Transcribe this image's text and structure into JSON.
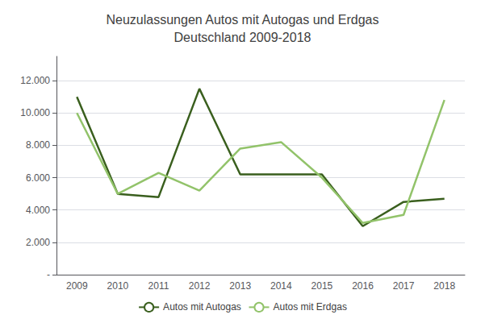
{
  "chart_data": {
    "type": "line",
    "title": "Neuzulassungen Autos mit Autogas und Erdgas\nDeutschland 2009-2018",
    "categories": [
      "2009",
      "2010",
      "2011",
      "2012",
      "2013",
      "2014",
      "2015",
      "2016",
      "2017",
      "2018"
    ],
    "series": [
      {
        "name": "Autos mit Autogas",
        "color": "#3a5f1e",
        "values": [
          11000,
          5000,
          4800,
          11500,
          6200,
          6200,
          6200,
          3000,
          4500,
          4700
        ]
      },
      {
        "name": "Autos mit Erdgas",
        "color": "#92c36a",
        "values": [
          10000,
          5000,
          6300,
          5200,
          7800,
          8200,
          6000,
          3200,
          3700,
          10800
        ]
      }
    ],
    "ylim": [
      0,
      13500
    ],
    "yticks": [
      {
        "value": 0,
        "label": "-"
      },
      {
        "value": 2000,
        "label": "2.000"
      },
      {
        "value": 4000,
        "label": "4.000"
      },
      {
        "value": 6000,
        "label": "6.000"
      },
      {
        "value": 8000,
        "label": "8.000"
      },
      {
        "value": 10000,
        "label": "10.000"
      },
      {
        "value": 12000,
        "label": "12.000"
      }
    ],
    "grid": true,
    "legend": "bottom"
  }
}
